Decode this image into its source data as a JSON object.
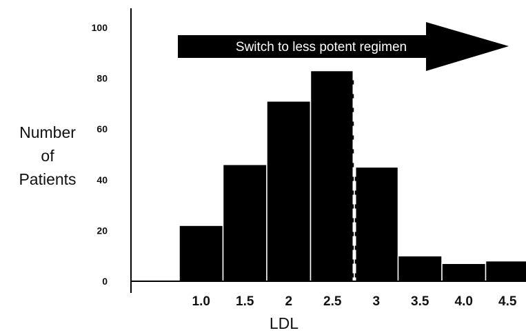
{
  "chart_data": {
    "type": "bar",
    "categories": [
      "1.0",
      "1.5",
      "2",
      "2.5",
      "3",
      "3.5",
      "4.0",
      "4.5"
    ],
    "values": [
      22,
      46,
      71,
      83,
      45,
      10,
      7,
      8
    ],
    "xlabel": "LDL",
    "ylabel_lines": [
      "Number",
      "of",
      "Patients"
    ],
    "ylim": [
      0,
      100
    ],
    "yticks": [
      0,
      20,
      40,
      60,
      80,
      100
    ],
    "grid": false,
    "bar_color": "#000000",
    "threshold_line": {
      "between": [
        "2.5",
        "3"
      ],
      "style": "dashed",
      "color": "#ffffff"
    },
    "annotation": {
      "text": "Switch to less potent regimen",
      "shape": "arrow-right"
    }
  }
}
